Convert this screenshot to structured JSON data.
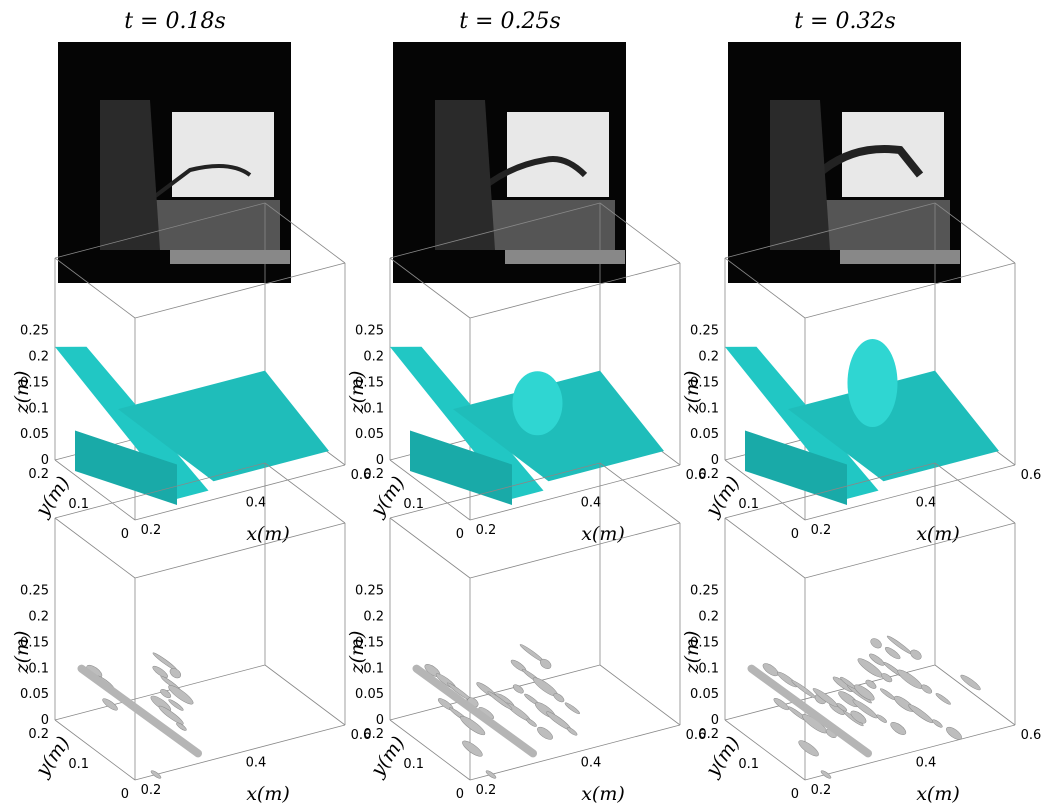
{
  "columns": [
    {
      "title": "t = 0.18s"
    },
    {
      "title": "t = 0.25s"
    },
    {
      "title": "t = 0.32s"
    }
  ],
  "axes": {
    "z_label": "z(m)",
    "y_label": "y(m)",
    "x_label": "x(m)",
    "z_ticks": [
      "0",
      "0.05",
      "0.1",
      "0.15",
      "0.2",
      "0.25"
    ],
    "y_ticks": [
      "0.2",
      "0.1",
      "0"
    ],
    "x_ticks": [
      "0.2",
      "0.4",
      "0.6"
    ]
  }
}
